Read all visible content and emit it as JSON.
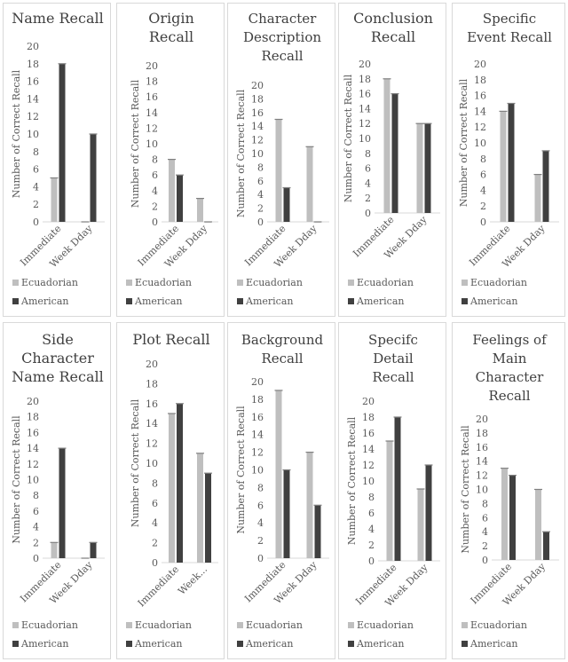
{
  "colors": {
    "Ecuadorian": "#bfbfbf",
    "American": "#404040",
    "axis": "#d9d9d9",
    "errbar": "#808080"
  },
  "chart_data": [
    {
      "type": "bar",
      "title": [
        "Name Recall"
      ],
      "ylabel": "Number of Correct Recall",
      "categories": [
        "Immediate",
        "Week Dday"
      ],
      "ylim": [
        0,
        20
      ],
      "ytick_step": 2,
      "series": [
        {
          "name": "Ecuadorian",
          "values": [
            5,
            0
          ]
        },
        {
          "name": "American",
          "values": [
            18,
            10
          ]
        }
      ]
    },
    {
      "type": "bar",
      "title": [
        "Origin",
        "Recall"
      ],
      "ylabel": "Number of Correct Recall",
      "categories": [
        "Immediate",
        "Week Dday"
      ],
      "ylim": [
        0,
        20
      ],
      "ytick_step": 2,
      "series": [
        {
          "name": "Ecuadorian",
          "values": [
            8,
            3
          ]
        },
        {
          "name": "American",
          "values": [
            6,
            0
          ]
        }
      ]
    },
    {
      "type": "bar",
      "title": [
        "Character",
        "Description",
        "Recall"
      ],
      "ylabel": "Number of Correct Recall",
      "categories": [
        "Immediate",
        "Week Dday"
      ],
      "ylim": [
        0,
        20
      ],
      "ytick_step": 2,
      "series": [
        {
          "name": "Ecuadorian",
          "values": [
            15,
            11
          ]
        },
        {
          "name": "American",
          "values": [
            5,
            0
          ]
        }
      ]
    },
    {
      "type": "bar",
      "title": [
        "Conclusion",
        "Recall"
      ],
      "ylabel": "Number of Correct Recall",
      "categories": [
        "Immediate",
        "Week Dday"
      ],
      "ylim": [
        0,
        20
      ],
      "ytick_step": 2,
      "series": [
        {
          "name": "Ecuadorian",
          "values": [
            18,
            12
          ]
        },
        {
          "name": "American",
          "values": [
            16,
            12
          ]
        }
      ]
    },
    {
      "type": "bar",
      "title": [
        "Specific",
        "Event Recall"
      ],
      "ylabel": "Number of Correct Recall",
      "categories": [
        "Immediate",
        "Week Dday"
      ],
      "ylim": [
        0,
        20
      ],
      "ytick_step": 2,
      "series": [
        {
          "name": "Ecuadorian",
          "values": [
            14,
            6
          ]
        },
        {
          "name": "American",
          "values": [
            15,
            9
          ]
        }
      ]
    },
    {
      "type": "bar",
      "title": [
        "Side",
        "Character",
        "Name Recall"
      ],
      "ylabel": "Number of Correct Recall",
      "categories": [
        "Immediate",
        "Week Dday"
      ],
      "ylim": [
        0,
        20
      ],
      "ytick_step": 2,
      "series": [
        {
          "name": "Ecuadorian",
          "values": [
            2,
            0
          ]
        },
        {
          "name": "American",
          "values": [
            14,
            2
          ]
        }
      ]
    },
    {
      "type": "bar",
      "title": [
        "Plot Recall"
      ],
      "ylabel": "Number of Correct Recall",
      "categories": [
        "Immediate",
        "Week..."
      ],
      "ylim": [
        0,
        20
      ],
      "ytick_step": 2,
      "series": [
        {
          "name": "Ecuadorian",
          "values": [
            15,
            11
          ]
        },
        {
          "name": "American",
          "values": [
            16,
            9
          ]
        }
      ]
    },
    {
      "type": "bar",
      "title": [
        "Background",
        "Recall"
      ],
      "ylabel": "Number of Correct Recall",
      "categories": [
        "Immediate",
        "Week Dday"
      ],
      "ylim": [
        0,
        20
      ],
      "ytick_step": 2,
      "series": [
        {
          "name": "Ecuadorian",
          "values": [
            19,
            12
          ]
        },
        {
          "name": "American",
          "values": [
            10,
            6
          ]
        }
      ]
    },
    {
      "type": "bar",
      "title": [
        "Specifc",
        "Detail",
        "Recall"
      ],
      "ylabel": "Number of Correct Recall",
      "categories": [
        "Immediate",
        "Week Dday"
      ],
      "ylim": [
        0,
        20
      ],
      "ytick_step": 2,
      "series": [
        {
          "name": "Ecuadorian",
          "values": [
            15,
            9
          ]
        },
        {
          "name": "American",
          "values": [
            18,
            12
          ]
        }
      ]
    },
    {
      "type": "bar",
      "title": [
        "Feelings of",
        "Main",
        "Character",
        "Recall"
      ],
      "ylabel": "Number of Correct Recall",
      "categories": [
        "Immediate",
        "Week Dday"
      ],
      "ylim": [
        0,
        20
      ],
      "ytick_step": 2,
      "series": [
        {
          "name": "Ecuadorian",
          "values": [
            13,
            10
          ]
        },
        {
          "name": "American",
          "values": [
            12,
            4
          ]
        }
      ]
    }
  ]
}
